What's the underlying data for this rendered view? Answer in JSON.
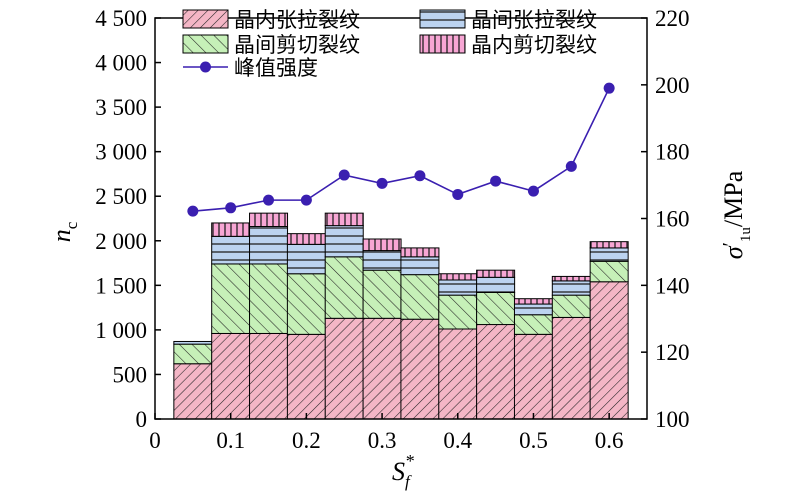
{
  "chart_data": {
    "type": "bar",
    "stacked": true,
    "x": [
      0.05,
      0.1,
      0.15,
      0.2,
      0.25,
      0.3,
      0.35,
      0.4,
      0.45,
      0.5,
      0.55,
      0.6
    ],
    "series": [
      {
        "name": "晶内张拉裂纹",
        "values": [
          620,
          960,
          960,
          950,
          1130,
          1130,
          1120,
          1010,
          1060,
          950,
          1140,
          1540
        ],
        "color": "#f4b6c6",
        "pattern": "hatch-dense"
      },
      {
        "name": "晶间剪切裂纹",
        "values": [
          220,
          780,
          780,
          680,
          690,
          540,
          500,
          380,
          360,
          220,
          250,
          230
        ],
        "color": "#c6f0b8",
        "pattern": "hatch-sparse"
      },
      {
        "name": "晶间张拉裂纹",
        "values": [
          30,
          310,
          420,
          330,
          350,
          220,
          200,
          170,
          170,
          120,
          160,
          150
        ],
        "color": "#bcd3f0",
        "pattern": "horizontal"
      },
      {
        "name": "晶内剪切裂纹",
        "values": [
          0,
          150,
          150,
          120,
          140,
          130,
          100,
          70,
          80,
          60,
          50,
          70
        ],
        "color": "#f7a6d4",
        "pattern": "vertical"
      }
    ],
    "line": {
      "name": "峰值强度",
      "x": [
        0.05,
        0.1,
        0.15,
        0.2,
        0.25,
        0.3,
        0.35,
        0.4,
        0.45,
        0.5,
        0.55,
        0.6
      ],
      "values": [
        162.2,
        163.2,
        165.5,
        165.5,
        173,
        170.5,
        172.8,
        167.2,
        171.2,
        168.2,
        175.6,
        199
      ],
      "color": "#3a1fb0"
    },
    "xlim": [
      0,
      0.65
    ],
    "ylim": [
      0,
      4500
    ],
    "y2lim": [
      100,
      220
    ],
    "xticks": [
      "0",
      "0.1",
      "0.2",
      "0.3",
      "0.4",
      "0.5",
      "0.6"
    ],
    "yticks": [
      "0",
      "500",
      "1 000",
      "1 500",
      "2 000",
      "2 500",
      "3 000",
      "3 500",
      "4 000",
      "4 500"
    ],
    "y2ticks": [
      "100",
      "120",
      "140",
      "160",
      "180",
      "200",
      "220"
    ],
    "xlabel": "S",
    "xlabel_sub": "f",
    "xlabel_sup": "*",
    "ylabel": "n",
    "ylabel_sub": "c",
    "y2label": "σ",
    "y2label_sup": "′",
    "y2label_sub": "1u",
    "y2label_unit": "/MPa",
    "legend_position": "top"
  }
}
